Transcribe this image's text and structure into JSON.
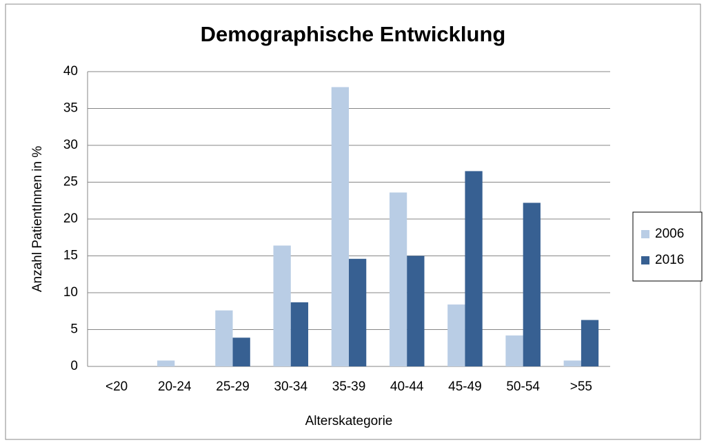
{
  "chart_data": {
    "type": "bar",
    "title": "Demographische Entwicklung",
    "x_label": "Alterskategorie",
    "y_label": "Anzahl PatientInnen in %",
    "categories": [
      "<20",
      "20-24",
      "25-29",
      "30-34",
      "35-39",
      "40-44",
      "45-49",
      "50-54",
      ">55"
    ],
    "series": [
      {
        "name": "2006",
        "color": "#b9cde5",
        "values": [
          0,
          0.8,
          7.6,
          16.4,
          37.9,
          23.6,
          8.4,
          4.2,
          0.8
        ]
      },
      {
        "name": "2016",
        "color": "#376092",
        "values": [
          0,
          0,
          3.9,
          8.7,
          14.6,
          15.0,
          26.5,
          22.2,
          6.3
        ]
      }
    ],
    "ylim": [
      0,
      40
    ],
    "yticks": [
      0,
      5,
      10,
      15,
      20,
      25,
      30,
      35,
      40
    ],
    "grid": true,
    "legend": "right"
  }
}
